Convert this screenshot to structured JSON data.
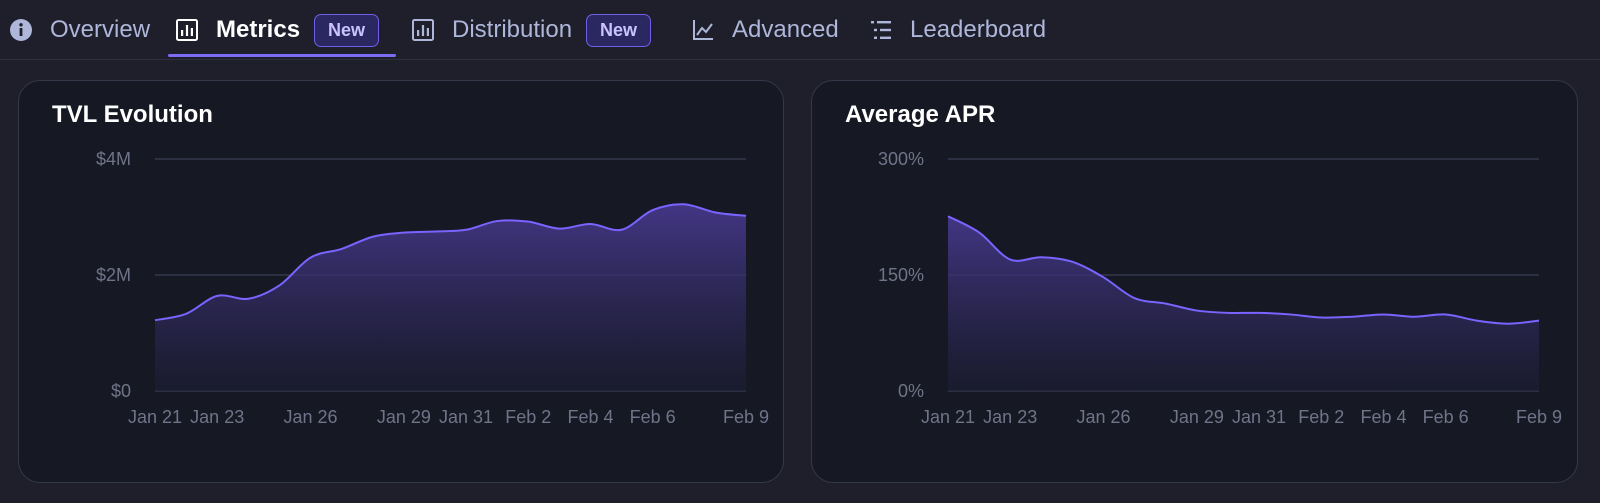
{
  "tabs": [
    {
      "label": "Overview",
      "icon": "info-icon",
      "active": false
    },
    {
      "label": "Metrics",
      "icon": "bar-chart-icon",
      "active": true,
      "badge": "New"
    },
    {
      "label": "Distribution",
      "icon": "bar-chart-icon",
      "active": false,
      "badge": "New"
    },
    {
      "label": "Advanced",
      "icon": "line-chart-icon",
      "active": false
    },
    {
      "label": "Leaderboard",
      "icon": "list-icon",
      "active": false
    }
  ],
  "colors": {
    "accent": "#7b6cf2",
    "line": "#7a63ff",
    "grid": "#3b3f54",
    "background": "#161923"
  },
  "chart_data": [
    {
      "type": "area",
      "title": "TVL Evolution",
      "x_ticks": [
        "Jan 21",
        "Jan 23",
        "Jan 26",
        "Jan 29",
        "Jan 31",
        "Feb 2",
        "Feb 4",
        "Feb 6",
        "Feb 9"
      ],
      "y_ticks": [
        "$0",
        "$2M",
        "$4M"
      ],
      "ylim": [
        0,
        4
      ],
      "y_unit": "M USD",
      "grid": true,
      "series": [
        {
          "x": [
            "Jan 21",
            "Jan 22",
            "Jan 23",
            "Jan 24",
            "Jan 25",
            "Jan 26",
            "Jan 27",
            "Jan 28",
            "Jan 29",
            "Jan 30",
            "Jan 31",
            "Feb 1",
            "Feb 2",
            "Feb 3",
            "Feb 4",
            "Feb 5",
            "Feb 6",
            "Feb 7",
            "Feb 8",
            "Feb 9"
          ],
          "values": [
            1.22,
            1.33,
            1.64,
            1.59,
            1.82,
            2.3,
            2.45,
            2.66,
            2.73,
            2.75,
            2.78,
            2.93,
            2.92,
            2.8,
            2.88,
            2.78,
            3.12,
            3.22,
            3.08,
            3.02
          ]
        }
      ]
    },
    {
      "type": "area",
      "title": "Average APR",
      "x_ticks": [
        "Jan 21",
        "Jan 23",
        "Jan 26",
        "Jan 29",
        "Jan 31",
        "Feb 2",
        "Feb 4",
        "Feb 6",
        "Feb 9"
      ],
      "y_ticks": [
        "0%",
        "150%",
        "300%"
      ],
      "ylim": [
        0,
        300
      ],
      "y_unit": "%",
      "grid": true,
      "series": [
        {
          "x": [
            "Jan 21",
            "Jan 22",
            "Jan 23",
            "Jan 24",
            "Jan 25",
            "Jan 26",
            "Jan 27",
            "Jan 28",
            "Jan 29",
            "Jan 30",
            "Jan 31",
            "Feb 1",
            "Feb 2",
            "Feb 3",
            "Feb 4",
            "Feb 5",
            "Feb 6",
            "Feb 7",
            "Feb 8",
            "Feb 9"
          ],
          "values": [
            226,
            205,
            170,
            173,
            167,
            147,
            120,
            113,
            104,
            101,
            101,
            99,
            95,
            96,
            99,
            96,
            99,
            91,
            87,
            91
          ]
        }
      ]
    }
  ]
}
